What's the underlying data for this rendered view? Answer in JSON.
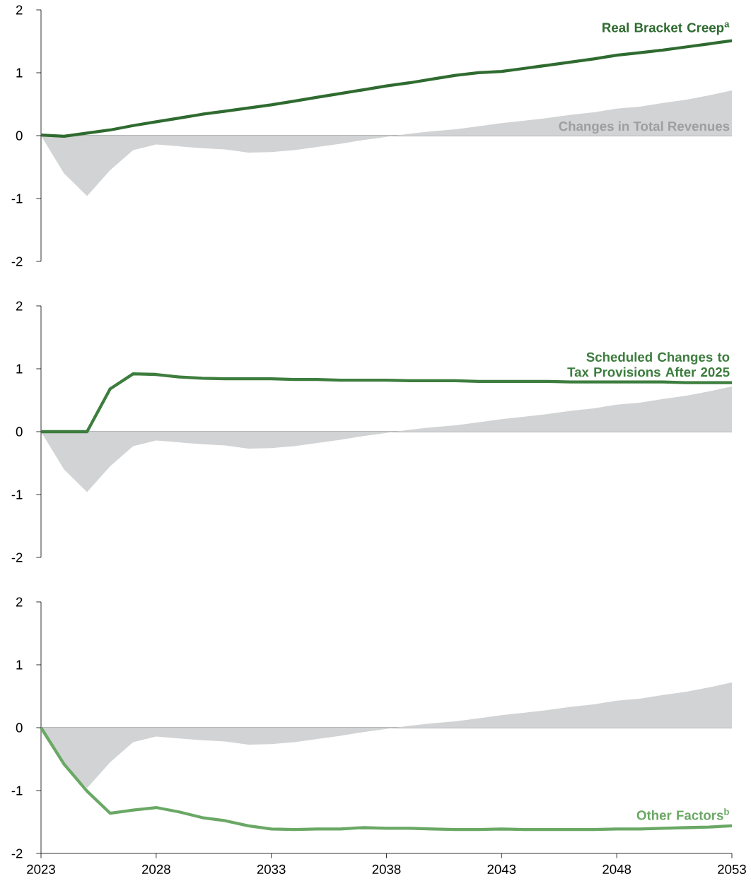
{
  "chart_data": [
    {
      "type": "line",
      "x": [
        2023,
        2024,
        2025,
        2026,
        2027,
        2028,
        2029,
        2030,
        2031,
        2032,
        2033,
        2034,
        2035,
        2036,
        2037,
        2038,
        2039,
        2040,
        2041,
        2042,
        2043,
        2044,
        2045,
        2046,
        2047,
        2048,
        2049,
        2050,
        2051,
        2052,
        2053
      ],
      "series": [
        {
          "type": "area",
          "name": "Changes in Total Revenues",
          "color": "#d1d3d4",
          "values": [
            0,
            -0.6,
            -0.96,
            -0.55,
            -0.23,
            -0.14,
            -0.17,
            -0.2,
            -0.22,
            -0.27,
            -0.26,
            -0.23,
            -0.18,
            -0.13,
            -0.07,
            -0.02,
            0.03,
            0.07,
            0.1,
            0.15,
            0.2,
            0.24,
            0.28,
            0.33,
            0.37,
            0.43,
            0.46,
            0.52,
            0.57,
            0.64,
            0.72
          ]
        },
        {
          "type": "line",
          "name": "Real Bracket Creep$^{a}$",
          "color": "#2f6b30",
          "values": [
            0.01,
            -0.01,
            0.04,
            0.09,
            0.16,
            0.22,
            0.28,
            0.34,
            0.39,
            0.44,
            0.49,
            0.55,
            0.61,
            0.67,
            0.73,
            0.79,
            0.84,
            0.9,
            0.96,
            1.0,
            1.02,
            1.07,
            1.12,
            1.17,
            1.22,
            1.28,
            1.32,
            1.36,
            1.41,
            1.46,
            1.51
          ]
        }
      ],
      "ylim": [
        -2,
        2
      ],
      "yticks": [
        -2,
        -1,
        0,
        1,
        2
      ],
      "xlim": [
        2023,
        2053
      ],
      "xticks": [
        2023,
        2028,
        2033,
        2038,
        2043,
        2048,
        2053
      ],
      "tick_labels": "y",
      "ref_lines": [
        {
          "axis": "y",
          "value": 0,
          "color": "#6d6e71"
        }
      ]
    },
    {
      "type": "line",
      "x": [
        2023,
        2024,
        2025,
        2026,
        2027,
        2028,
        2029,
        2030,
        2031,
        2032,
        2033,
        2034,
        2035,
        2036,
        2037,
        2038,
        2039,
        2040,
        2041,
        2042,
        2043,
        2044,
        2045,
        2046,
        2047,
        2048,
        2049,
        2050,
        2051,
        2052,
        2053
      ],
      "series": [
        {
          "type": "area",
          "color": "#d1d3d4",
          "values": [
            0,
            -0.6,
            -0.96,
            -0.55,
            -0.23,
            -0.14,
            -0.17,
            -0.2,
            -0.22,
            -0.27,
            -0.26,
            -0.23,
            -0.18,
            -0.13,
            -0.07,
            -0.02,
            0.03,
            0.07,
            0.1,
            0.15,
            0.2,
            0.24,
            0.28,
            0.33,
            0.37,
            0.43,
            0.46,
            0.52,
            0.57,
            0.64,
            0.72
          ]
        },
        {
          "type": "line",
          "name": "Scheduled Changes to Tax Provisions After 2025",
          "color": "#3d7d3e",
          "values": [
            0,
            0,
            0,
            0.68,
            0.92,
            0.91,
            0.87,
            0.85,
            0.84,
            0.84,
            0.84,
            0.83,
            0.83,
            0.82,
            0.82,
            0.82,
            0.81,
            0.81,
            0.81,
            0.8,
            0.8,
            0.8,
            0.8,
            0.79,
            0.79,
            0.79,
            0.79,
            0.79,
            0.78,
            0.78,
            0.78
          ]
        }
      ],
      "ylim": [
        -2,
        2
      ],
      "yticks": [
        -2,
        -1,
        0,
        1,
        2
      ],
      "xlim": [
        2023,
        2053
      ],
      "xticks": [
        2023,
        2028,
        2033,
        2038,
        2043,
        2048,
        2053
      ],
      "tick_labels": "y",
      "ref_lines": [
        {
          "axis": "y",
          "value": 0,
          "color": "#6d6e71"
        }
      ]
    },
    {
      "type": "line",
      "x": [
        2023,
        2024,
        2025,
        2026,
        2027,
        2028,
        2029,
        2030,
        2031,
        2032,
        2033,
        2034,
        2035,
        2036,
        2037,
        2038,
        2039,
        2040,
        2041,
        2042,
        2043,
        2044,
        2045,
        2046,
        2047,
        2048,
        2049,
        2050,
        2051,
        2052,
        2053
      ],
      "series": [
        {
          "type": "area",
          "color": "#d1d3d4",
          "values": [
            0,
            -0.6,
            -0.96,
            -0.55,
            -0.23,
            -0.14,
            -0.17,
            -0.2,
            -0.22,
            -0.27,
            -0.26,
            -0.23,
            -0.18,
            -0.13,
            -0.07,
            -0.02,
            0.03,
            0.07,
            0.1,
            0.15,
            0.2,
            0.24,
            0.28,
            0.33,
            0.37,
            0.43,
            0.46,
            0.52,
            0.57,
            0.64,
            0.72
          ]
        },
        {
          "type": "line",
          "name": "Other Factors$^{b}$",
          "color": "#6aa865",
          "values": [
            0,
            -0.58,
            -1.01,
            -1.36,
            -1.31,
            -1.27,
            -1.34,
            -1.43,
            -1.48,
            -1.56,
            -1.61,
            -1.62,
            -1.61,
            -1.61,
            -1.59,
            -1.6,
            -1.6,
            -1.61,
            -1.62,
            -1.62,
            -1.61,
            -1.62,
            -1.62,
            -1.62,
            -1.62,
            -1.61,
            -1.61,
            -1.6,
            -1.59,
            -1.58,
            -1.56
          ]
        }
      ],
      "ylim": [
        -2,
        2
      ],
      "yticks": [
        -2,
        -1,
        0,
        1,
        2
      ],
      "xlim": [
        2023,
        2053
      ],
      "xticks": [
        2023,
        2028,
        2033,
        2038,
        2043,
        2048,
        2053
      ],
      "ref_lines": [
        {
          "axis": "y",
          "value": 0,
          "color": "#6d6e71"
        }
      ]
    }
  ]
}
